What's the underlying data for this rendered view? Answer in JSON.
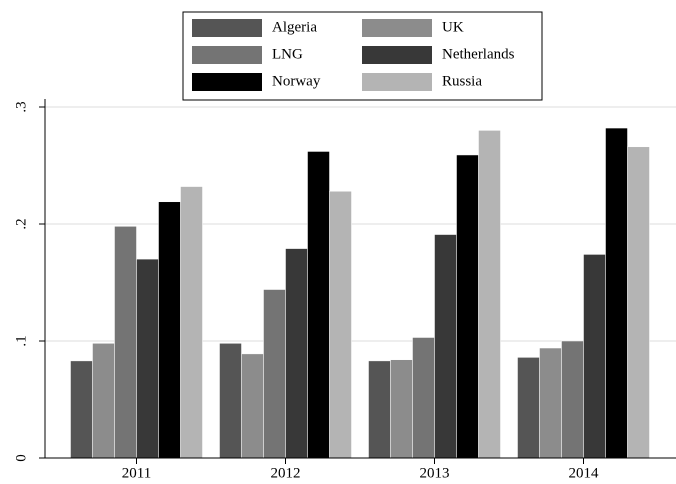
{
  "chart_data": {
    "type": "bar",
    "categories": [
      "2011",
      "2012",
      "2013",
      "2014"
    ],
    "series": [
      {
        "name": "Algeria",
        "color": "#555555",
        "values": [
          0.083,
          0.098,
          0.083,
          0.086
        ]
      },
      {
        "name": "UK",
        "color": "#8c8c8c",
        "values": [
          0.098,
          0.089,
          0.084,
          0.094
        ]
      },
      {
        "name": "LNG",
        "color": "#747474",
        "values": [
          0.198,
          0.144,
          0.103,
          0.1
        ]
      },
      {
        "name": "Netherlands",
        "color": "#383838",
        "values": [
          0.17,
          0.179,
          0.191,
          0.174
        ]
      },
      {
        "name": "Norway",
        "color": "#000000",
        "values": [
          0.219,
          0.262,
          0.259,
          0.282
        ]
      },
      {
        "name": "Russia",
        "color": "#b4b4b4",
        "values": [
          0.232,
          0.228,
          0.28,
          0.266
        ]
      }
    ],
    "ylim": [
      0,
      0.3
    ],
    "yticks": [
      0,
      {
        "value": 0.1,
        "label": ".1"
      },
      {
        "value": 0.2,
        "label": ".2"
      },
      {
        "value": 0.3,
        "label": ".3"
      }
    ],
    "grid": true,
    "legend_position": "top"
  }
}
